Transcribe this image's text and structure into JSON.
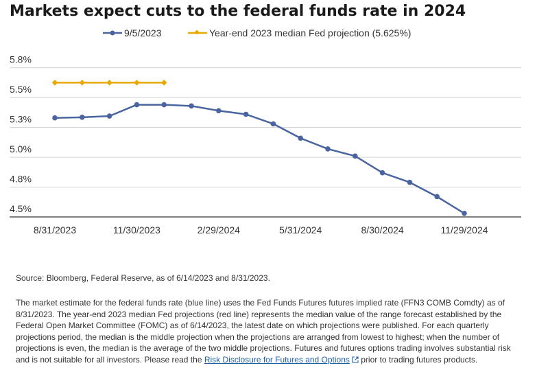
{
  "chart_data": {
    "type": "line",
    "title": "Markets expect cuts to the federal funds rate in 2024",
    "ylim": [
      4.5,
      5.8
    ],
    "y_ticks": [
      "5.8%",
      "5.5%",
      "5.3%",
      "5.0%",
      "4.8%",
      "4.5%"
    ],
    "y_tick_values": [
      5.75,
      5.5,
      5.25,
      5.0,
      4.75,
      4.5
    ],
    "x_ticks": [
      "8/31/2023",
      "11/30/2023",
      "2/29/2024",
      "5/31/2024",
      "8/30/2024",
      "11/29/2024"
    ],
    "x": [
      "8/31/2023",
      "9/30/2023",
      "10/31/2023",
      "11/30/2023",
      "12/31/2023",
      "1/31/2024",
      "2/29/2024",
      "3/31/2024",
      "4/30/2024",
      "5/31/2024",
      "6/30/2024",
      "7/31/2024",
      "8/30/2024",
      "9/30/2024",
      "10/31/2024",
      "11/29/2024"
    ],
    "grid": "horizontal",
    "legend_position": "top",
    "series": [
      {
        "name": "9/5/2023",
        "color": "#4a64a0",
        "x": [
          "8/31/2023",
          "9/30/2023",
          "10/31/2023",
          "11/30/2023",
          "12/31/2023",
          "1/31/2024",
          "2/29/2024",
          "3/31/2024",
          "4/30/2024",
          "5/31/2024",
          "6/30/2024",
          "7/31/2024",
          "8/30/2024",
          "9/30/2024",
          "10/31/2024",
          "11/29/2024"
        ],
        "values": [
          5.33,
          5.335,
          5.345,
          5.44,
          5.44,
          5.43,
          5.39,
          5.36,
          5.28,
          5.16,
          5.07,
          5.01,
          4.87,
          4.79,
          4.67,
          4.53
        ]
      },
      {
        "name": "Year-end 2023 median Fed projection (5.625%)",
        "color": "#e8a800",
        "x": [
          "8/31/2023",
          "9/30/2023",
          "10/31/2023",
          "11/30/2023",
          "12/31/2023"
        ],
        "values": [
          5.625,
          5.625,
          5.625,
          5.625,
          5.625
        ]
      }
    ]
  },
  "source": "Source: Bloomberg, Federal Reserve, as of 6/14/2023 and 8/31/2023.",
  "note": {
    "text": "The market estimate for the federal funds rate (blue line) uses the Fed Funds Futures futures implied rate (FFN3 COMB Comdty) as of 8/31/2023. The year-end 2023 median Fed projections (red line) represents the median value of the range forecast established by the Federal Open Market Committee (FOMC) as of 6/14/2023, the latest date on which projections were published. For each quarterly projections period, the median is the middle projection when the projections are arranged from lowest to highest; when the number of projections is even, the median is the average of the two middle projections. Futures and futures options trading involves substantial risk and is not suitable for all investors. Please read the ",
    "link_text": "Risk Disclosure for Futures and Options",
    "suffix": " prior to trading futures products."
  },
  "icons": {
    "external_link": "external-link-icon"
  }
}
